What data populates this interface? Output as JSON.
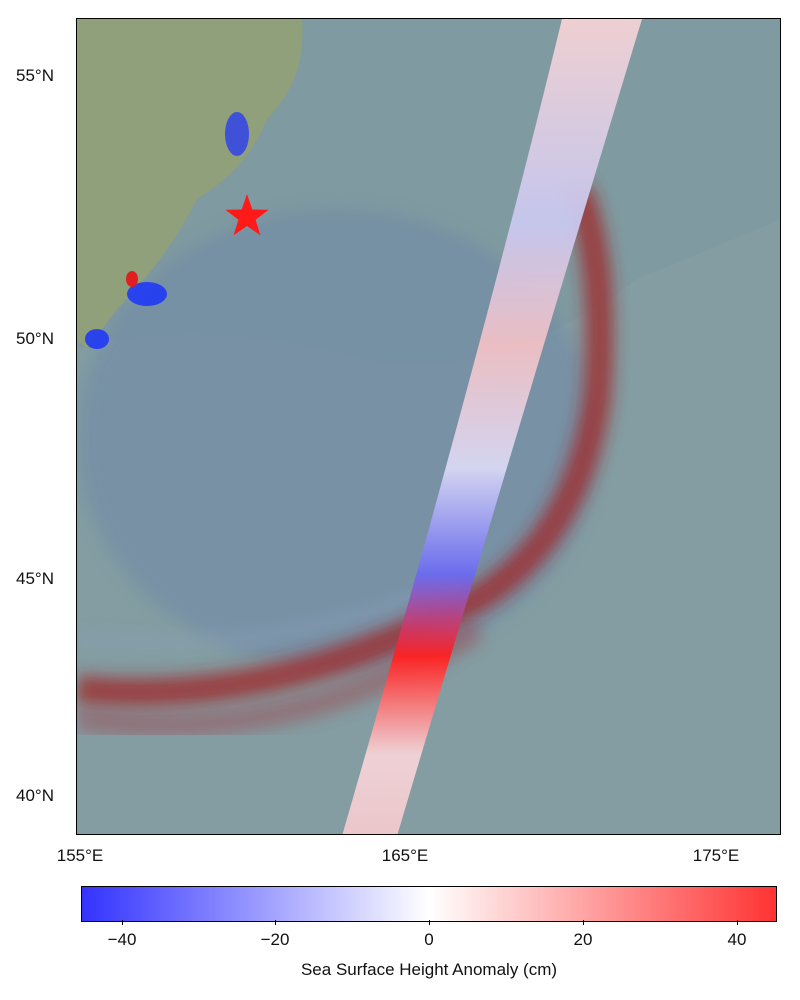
{
  "map": {
    "lat_labels": [
      "55°N",
      "50°N",
      "45°N",
      "40°N"
    ],
    "lon_labels": [
      "155°E",
      "165°E",
      "175°E"
    ],
    "epicenter_marker": "red-star",
    "colors": {
      "negative": "#3333ff",
      "zero": "#ffffff",
      "positive": "#ff3333",
      "ocean": "#7f9aa0",
      "land": "#8fa07a"
    }
  },
  "colorbar": {
    "ticks": [
      "−40",
      "−20",
      "0",
      "20",
      "40"
    ],
    "range_cm": [
      -45,
      45
    ],
    "label": "Sea Surface Height Anomaly (cm)"
  }
}
